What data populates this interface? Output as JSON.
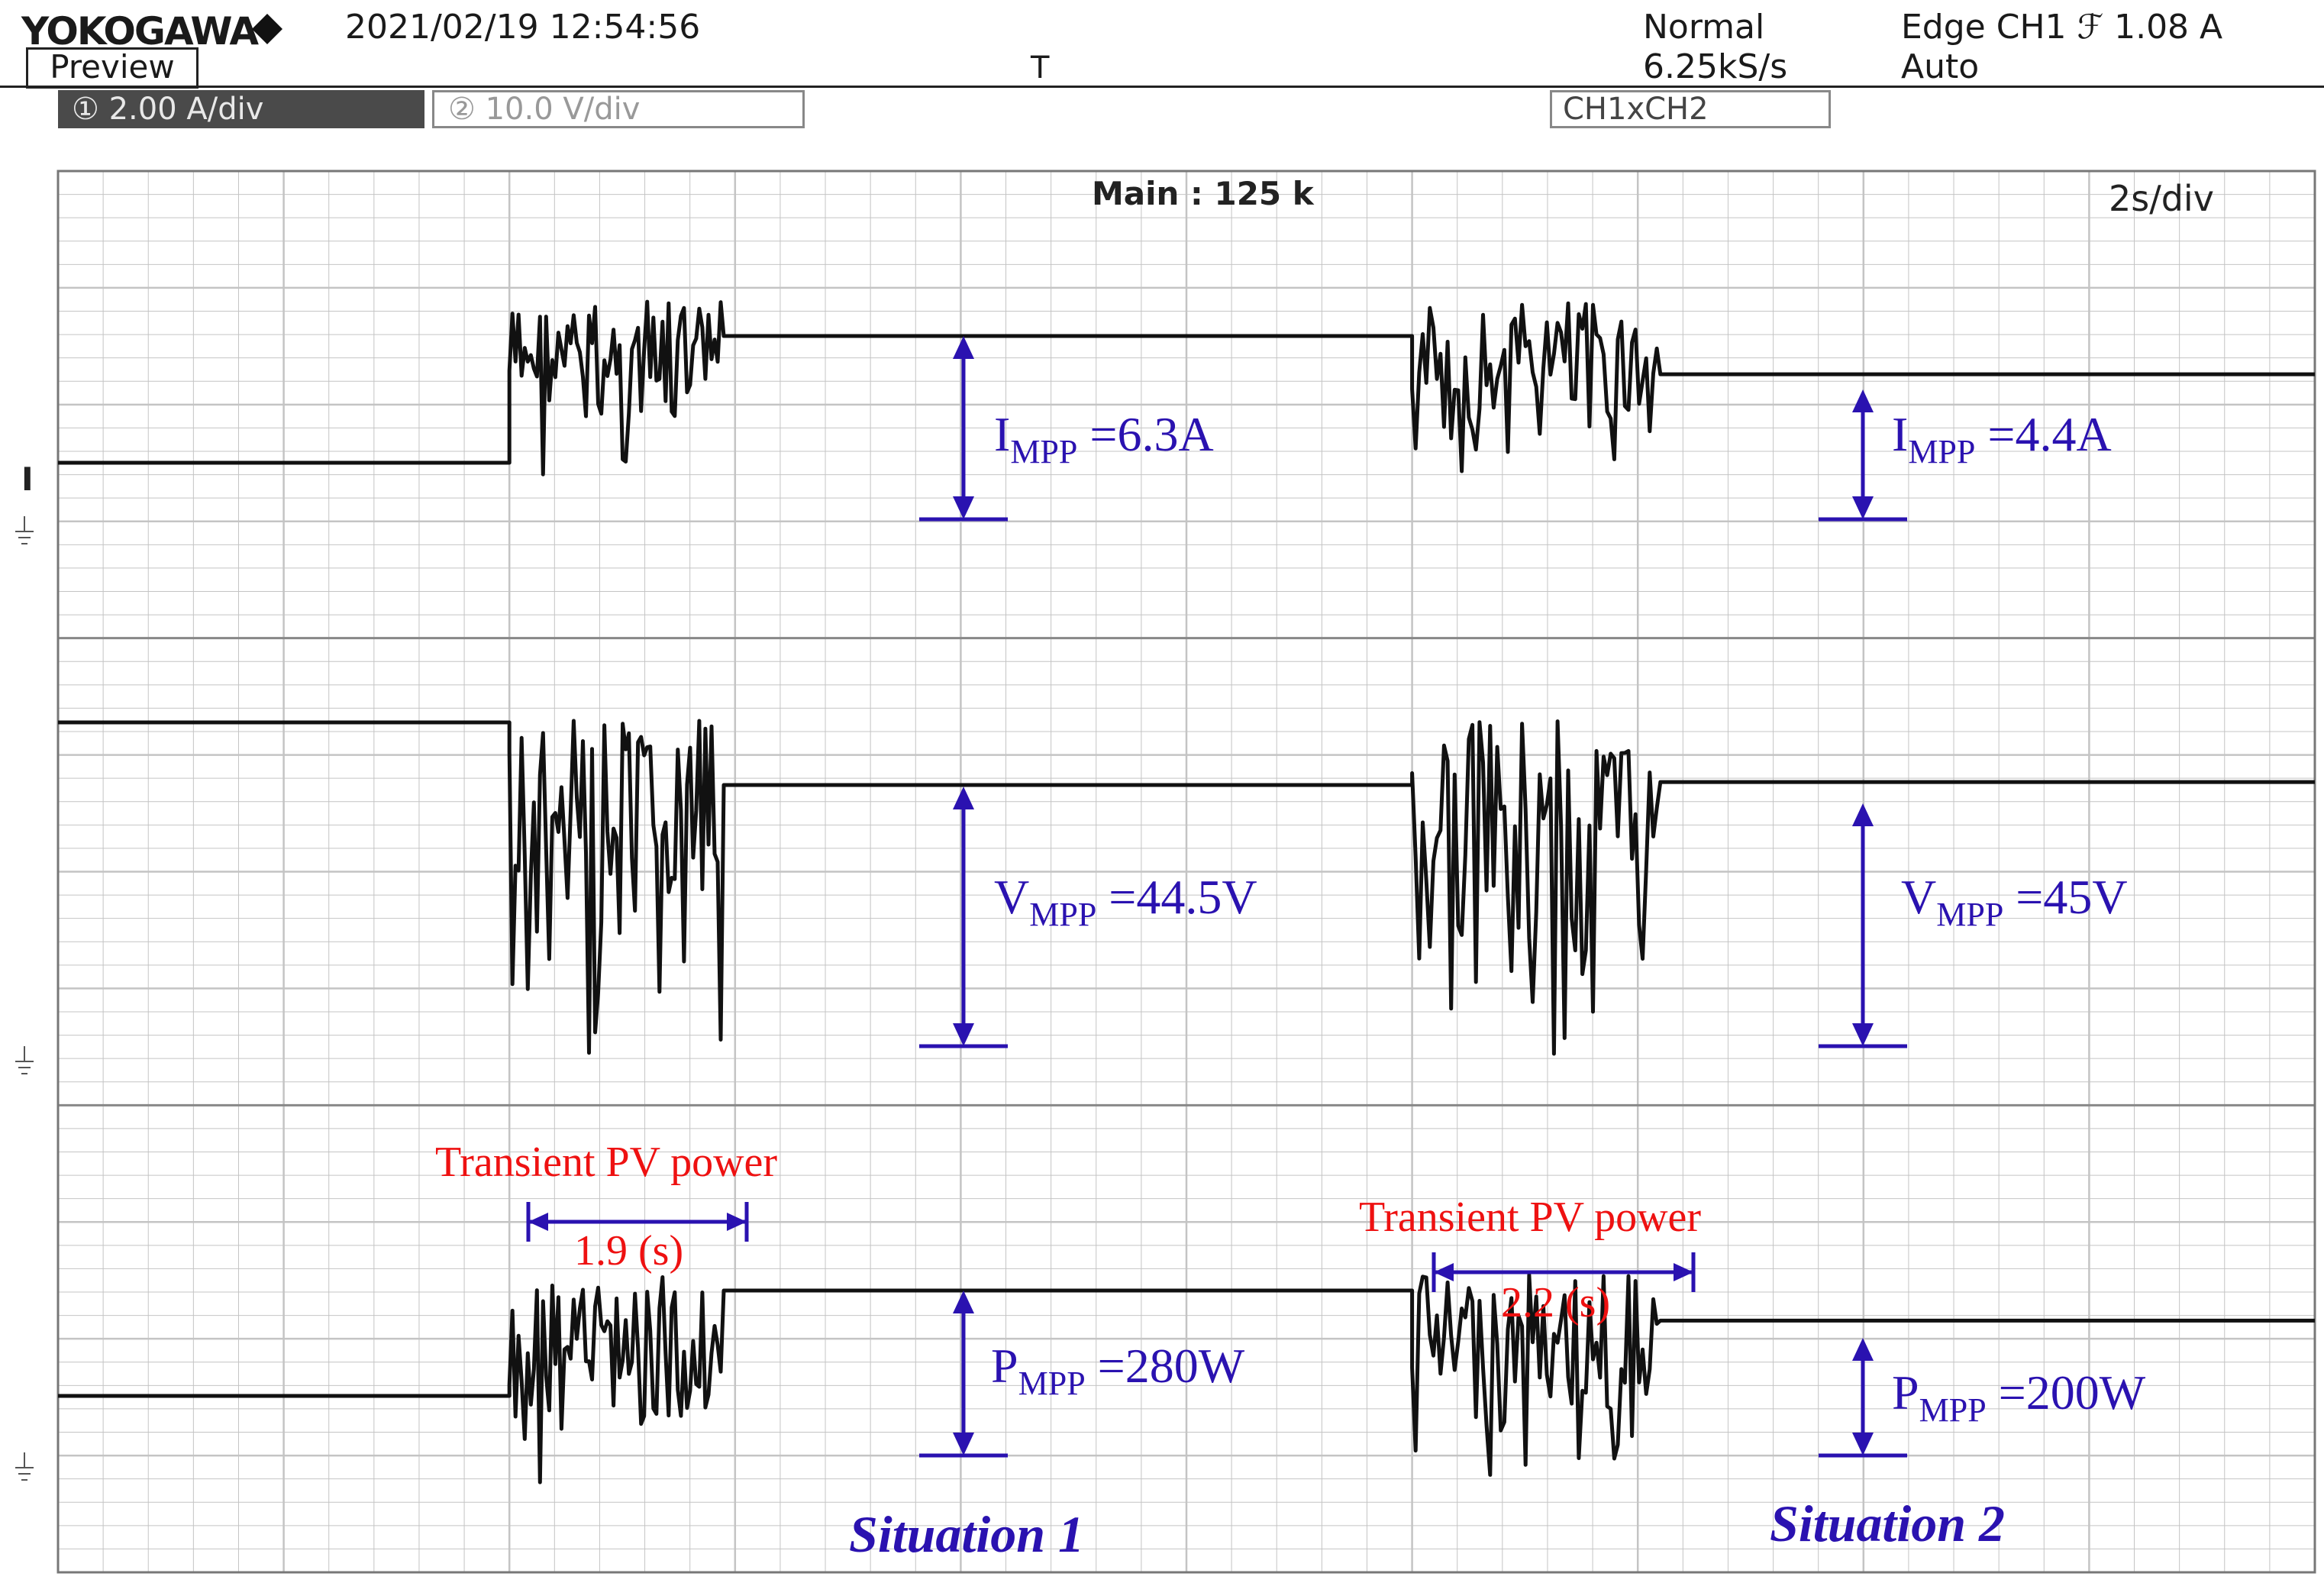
{
  "header": {
    "brand": "YOKOGAWA",
    "datetime": "2021/02/19 12:54:56",
    "preview_label": "Preview",
    "trigger_marker": "T",
    "acq_mode": "Normal",
    "sample_rate": "6.25kS/s",
    "trigger_edge": "Edge CH1 ℱ 1.08 A",
    "trigger_mode": "Auto",
    "ch1_setting": "① 2.00 A/div",
    "ch2_setting": "② 10.0 V/div",
    "math_setting": "CH1xCH2"
  },
  "screen": {
    "record": "Main : 125 k",
    "timebase": "2s/div",
    "ch1_marker": "I"
  },
  "colors": {
    "trace": "#111111",
    "grid": "#c4c4c4",
    "arrow": "#2a12b0",
    "transient": "#ee1111",
    "situation": "#2a12b0"
  },
  "annotations": {
    "i1": {
      "main": "I",
      "sub": "MPP",
      "value": " =6.3A"
    },
    "i2": {
      "main": "I",
      "sub": "MPP",
      "value": " =4.4A"
    },
    "v1": {
      "main": "V",
      "sub": "MPP",
      "value": " =44.5V"
    },
    "v2": {
      "main": "V",
      "sub": "MPP",
      "value": " =45V"
    },
    "p1": {
      "main": "P",
      "sub": "MPP",
      "value": " =280W"
    },
    "p2": {
      "main": "P",
      "sub": "MPP",
      "value": " =200W"
    },
    "transient1": {
      "label": "Transient PV power",
      "duration": "1.9 (s)"
    },
    "transient2": {
      "label": "Transient PV power",
      "duration": "2.2 (s)"
    },
    "situation1": "Situation 1",
    "situation2": "Situation 2"
  },
  "chart_data": {
    "type": "line",
    "title": "",
    "xlabel": "",
    "ylabel": "",
    "grid": true,
    "x_unit": "s",
    "xlim": [
      0,
      20
    ],
    "series": [
      {
        "name": "CH1",
        "segments": [
          {
            "t": [
              0,
              4.0
            ],
            "level": 0
          },
          {
            "t": [
              4.0,
              5.9
            ],
            "transient": true
          },
          {
            "t": [
              5.9,
              12.0
            ],
            "level": 6.3
          },
          {
            "t": [
              12.0,
              14.2
            ],
            "transient": true
          },
          {
            "t": [
              14.2,
              20
            ],
            "level": 4.4
          }
        ]
      },
      {
        "name": "CH2",
        "segments": [
          {
            "t": [
              0,
              4.0
            ],
            "level": 55
          },
          {
            "t": [
              4.0,
              5.9
            ],
            "transient": true
          },
          {
            "t": [
              5.9,
              12.0
            ],
            "level": 44.5
          },
          {
            "t": [
              12.0,
              14.2
            ],
            "transient": true
          },
          {
            "t": [
              14.2,
              20
            ],
            "level": 45
          }
        ]
      },
      {
        "name": "CH1xCH2",
        "segments": [
          {
            "t": [
              0,
              4.0
            ],
            "level": 0
          },
          {
            "t": [
              4.0,
              5.9
            ],
            "transient": true
          },
          {
            "t": [
              5.9,
              12.0
            ],
            "level": 280
          },
          {
            "t": [
              12.0,
              14.2
            ],
            "transient": true
          },
          {
            "t": [
              14.2,
              20
            ],
            "level": 200
          }
        ]
      }
    ]
  }
}
